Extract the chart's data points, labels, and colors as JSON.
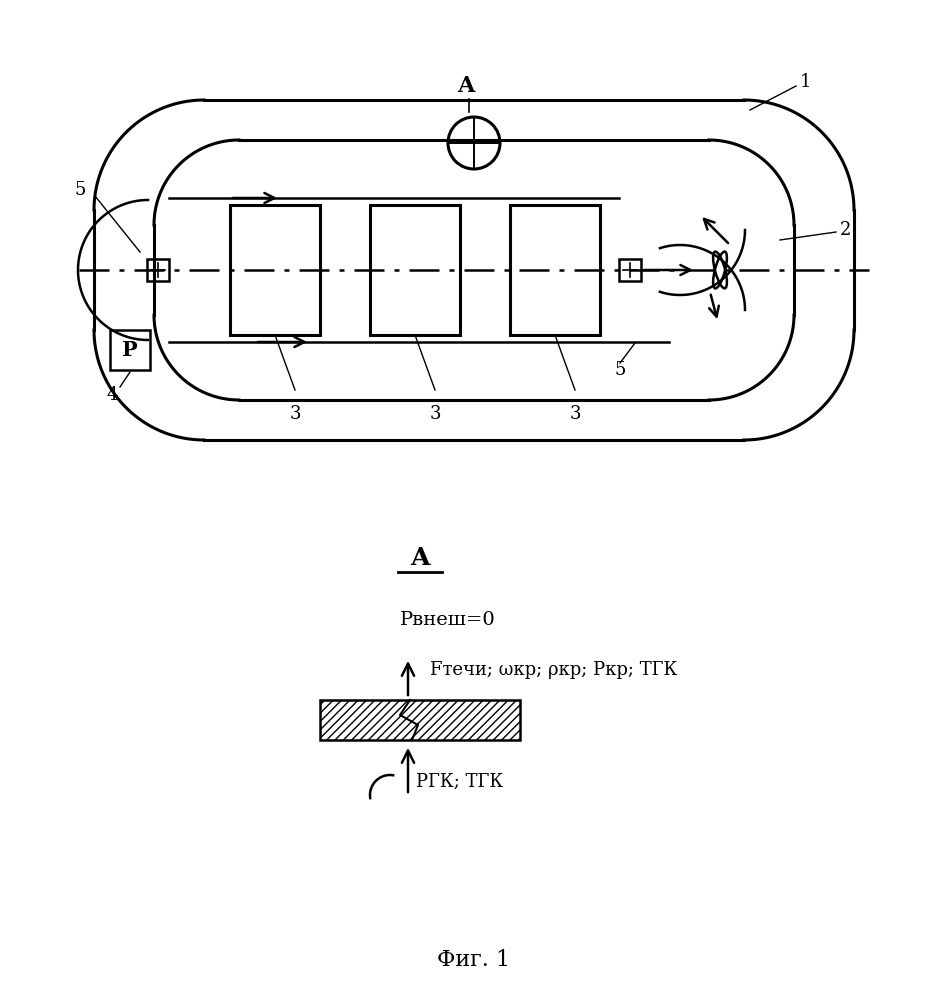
{
  "bg_color": "#ffffff",
  "fig_width": 9.48,
  "fig_height": 9.99,
  "title": "Фиг. 1",
  "label_A_top": "A",
  "label_1": "1",
  "label_2": "2",
  "label_3": "3",
  "label_4": "4",
  "label_5": "5",
  "label_P": "P",
  "section_A": "A",
  "text_Pvnesh": "Pвнеш=0",
  "text_Ftechi": "Fтечи; ωкр; ρкр; Pкр; TГК",
  "text_PGK": "PГК; TГК",
  "font_size": 13
}
